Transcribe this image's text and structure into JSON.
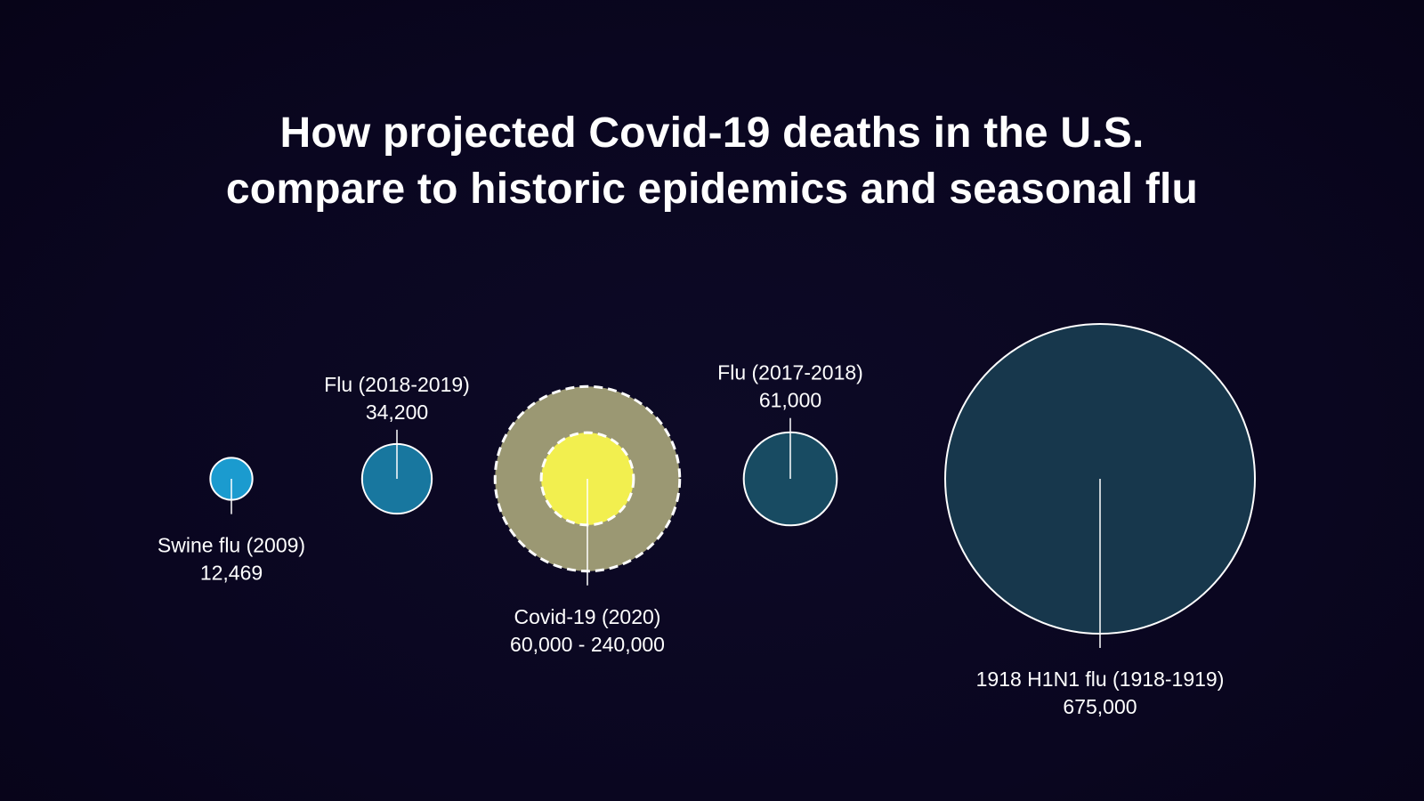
{
  "title": {
    "line1": "How projected Covid-19 deaths in the U.S.",
    "line2": "compare to historic epidemics and seasonal flu"
  },
  "chart_data": {
    "type": "bubble",
    "title": "How projected Covid-19 deaths in the U.S. compare to historic epidemics and seasonal flu",
    "max_value": 675000,
    "items": [
      {
        "id": "swine",
        "name": "Swine flu (2009)",
        "value_text": "12,469",
        "value": 12469,
        "color": "#1b9bcf",
        "label_pos": "below"
      },
      {
        "id": "flu1819",
        "name": "Flu (2018-2019)",
        "value_text": "34,200",
        "value": 34200,
        "color": "#18779f",
        "label_pos": "above"
      },
      {
        "id": "covid",
        "name": "Covid-19 (2020)",
        "value_text": "60,000 - 240,000",
        "value_low": 60000,
        "value_high": 240000,
        "color_low": "#f2ef4f",
        "color_high": "#9b9873",
        "label_pos": "below",
        "dashed": true
      },
      {
        "id": "flu1718",
        "name": "Flu (2017-2018)",
        "value_text": "61,000",
        "value": 61000,
        "color": "#184b62",
        "label_pos": "above"
      },
      {
        "id": "h1n1",
        "name": "1918 H1N1 flu (1918-1919)",
        "value_text": "675,000",
        "value": 675000,
        "color": "#17374c",
        "label_pos": "below"
      }
    ]
  }
}
